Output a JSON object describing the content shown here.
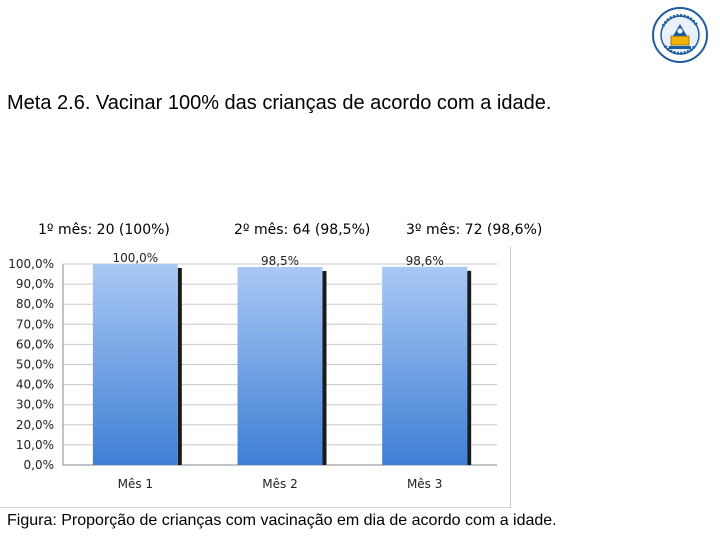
{
  "heading": "Meta 2.6. Vacinar 100% das crianças de acordo com a idade.",
  "month_labels": [
    "1º mês:   20 (100%)",
    "2º mês: 64 (98,5%)",
    "3º mês: 72 (98,6%)"
  ],
  "caption": "Figura: Proporção de crianças com vacinação em dia de acordo com a idade.",
  "chart_data": {
    "type": "bar",
    "categories": [
      "Mês 1",
      "Mês 2",
      "Mês 3"
    ],
    "values": [
      100.0,
      98.5,
      98.6
    ],
    "data_labels": [
      "100,0%",
      "98,5%",
      "98,6%"
    ],
    "y_ticks": [
      "0,0%",
      "10,0%",
      "20,0%",
      "30,0%",
      "40,0%",
      "50,0%",
      "60,0%",
      "70,0%",
      "80,0%",
      "90,0%",
      "100,0%"
    ],
    "ylim": [
      0,
      100
    ],
    "grid": true,
    "legend": "none",
    "colors": {
      "bar_top": "#a9c8f5",
      "bar_bottom": "#3f7fd4",
      "shadow": "#1a1a1a",
      "grid": "#c8c8c8"
    }
  }
}
